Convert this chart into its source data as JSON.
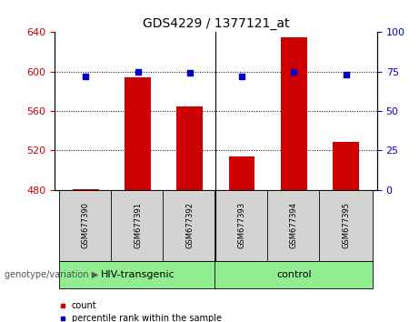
{
  "title": "GDS4229 / 1377121_at",
  "samples": [
    "GSM677390",
    "GSM677391",
    "GSM677392",
    "GSM677393",
    "GSM677394",
    "GSM677395"
  ],
  "bar_values": [
    481,
    594,
    565,
    514,
    635,
    529
  ],
  "percentile_values": [
    72,
    75,
    74,
    72,
    75,
    73
  ],
  "bar_color": "#cc0000",
  "percentile_color": "#0000cc",
  "ylim_left": [
    480,
    640
  ],
  "ylim_right": [
    0,
    100
  ],
  "yticks_left": [
    480,
    520,
    560,
    600,
    640
  ],
  "yticks_right": [
    0,
    25,
    50,
    75,
    100
  ],
  "group1_label": "HIV-transgenic",
  "group2_label": "control",
  "group1_color": "#90ee90",
  "group2_color": "#90ee90",
  "bottom_label": "genotype/variation",
  "legend_count": "count",
  "legend_percentile": "percentile rank within the sample",
  "bar_width": 0.5,
  "base_value": 480,
  "sample_box_color": "#d3d3d3",
  "grid_lines": [
    520,
    560,
    600
  ]
}
